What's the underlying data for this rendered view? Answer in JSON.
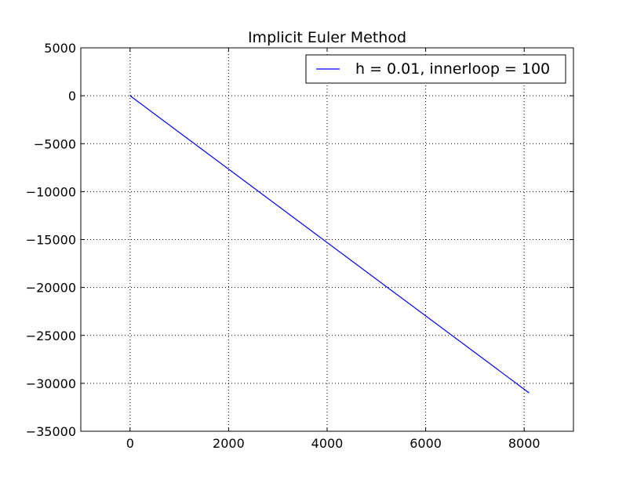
{
  "chart_data": {
    "type": "line",
    "title": "Implicit Euler Method",
    "xlabel": "",
    "ylabel": "",
    "xlim": [
      -1000,
      9000
    ],
    "ylim": [
      -35000,
      5000
    ],
    "x_ticks": [
      0,
      2000,
      4000,
      6000,
      8000
    ],
    "x_tick_labels": [
      "0",
      "2000",
      "4000",
      "6000",
      "8000"
    ],
    "y_ticks": [
      5000,
      0,
      -5000,
      -10000,
      -15000,
      -20000,
      -25000,
      -30000,
      -35000
    ],
    "y_tick_labels": [
      "5000",
      "0",
      "−5000",
      "−10000",
      "−15000",
      "−20000",
      "−25000",
      "−30000",
      "−35000"
    ],
    "grid": true,
    "legend_position": "top-right",
    "series": [
      {
        "name": "h = 0.01, innerloop = 100",
        "color": "#0000ff",
        "x": [
          0,
          8100
        ],
        "y": [
          0,
          -31000
        ]
      }
    ]
  }
}
